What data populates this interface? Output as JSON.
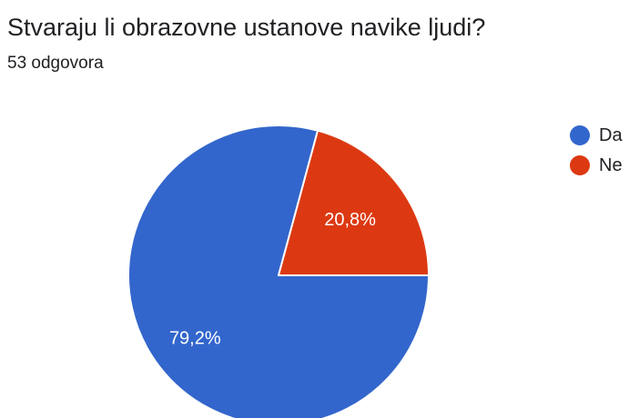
{
  "question": {
    "title": "Stvaraju li obrazovne ustanove navike ljudi?",
    "responses": "53 odgovora"
  },
  "chart_data": {
    "type": "pie",
    "title": "Stvaraju li obrazovne ustanove navike ljudi?",
    "categories": [
      "Da",
      "Ne"
    ],
    "values": [
      79.2,
      20.8
    ],
    "labels": [
      "79,2%",
      "20,8%"
    ],
    "colors": [
      "#3366cc",
      "#dc3912"
    ],
    "legend_position": "right"
  }
}
